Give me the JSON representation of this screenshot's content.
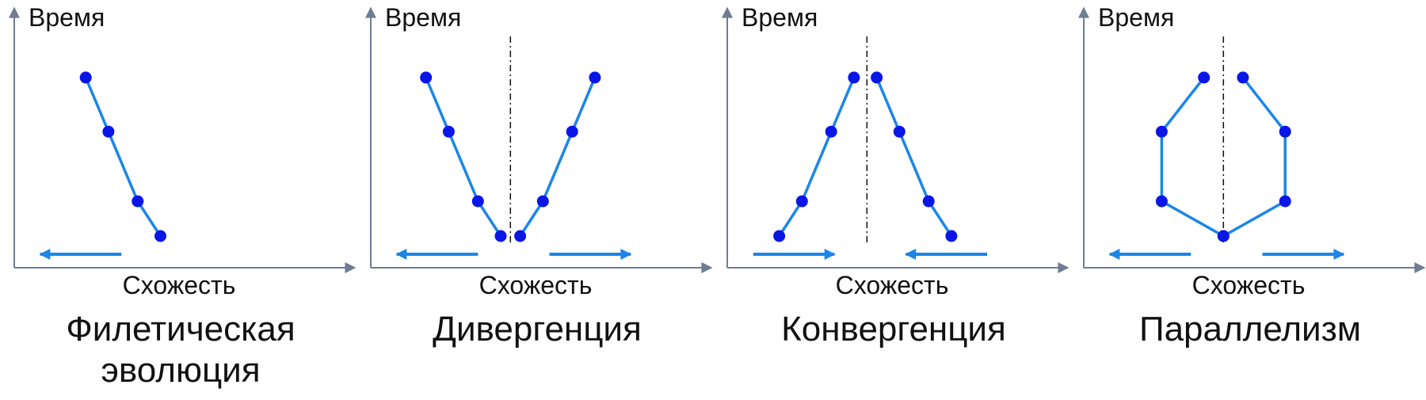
{
  "colors": {
    "axis": "#6f7d94",
    "line": "#1a86e8",
    "point": "#0a16e6",
    "arrow": "#1a86e8",
    "divider": "#111111",
    "text": "#111111"
  },
  "axis_labels": {
    "y": "Время",
    "x": "Схожесть"
  },
  "panels": [
    {
      "key": "phyletic",
      "title_lines": [
        "Филетическая",
        "эволюция"
      ],
      "y_label": "Время",
      "x_label": "Схожесть",
      "has_divider": false,
      "arrows": [
        "left"
      ],
      "lineages": [
        {
          "points": [
            [
              0.22,
              0.82
            ],
            [
              0.29,
              0.54
            ],
            [
              0.38,
              0.18
            ],
            [
              0.45,
              0.0
            ]
          ]
        }
      ]
    },
    {
      "key": "divergence",
      "title_lines": [
        "Дивергенция"
      ],
      "y_label": "Время",
      "x_label": "Схожесть",
      "has_divider": true,
      "arrows": [
        "left",
        "right"
      ],
      "lineages": [
        {
          "points": [
            [
              0.17,
              0.82
            ],
            [
              0.24,
              0.54
            ],
            [
              0.33,
              0.18
            ],
            [
              0.4,
              0.0
            ]
          ]
        },
        {
          "points": [
            [
              0.46,
              0.0
            ],
            [
              0.53,
              0.18
            ],
            [
              0.62,
              0.54
            ],
            [
              0.69,
              0.82
            ]
          ]
        }
      ]
    },
    {
      "key": "convergence",
      "title_lines": [
        "Конвергенция"
      ],
      "y_label": "Время",
      "x_label": "Схожесть",
      "has_divider": true,
      "arrows": [
        "right",
        "left"
      ],
      "lineages": [
        {
          "points": [
            [
              0.16,
              0.0
            ],
            [
              0.23,
              0.18
            ],
            [
              0.32,
              0.54
            ],
            [
              0.39,
              0.82
            ]
          ]
        },
        {
          "points": [
            [
              0.46,
              0.82
            ],
            [
              0.53,
              0.54
            ],
            [
              0.62,
              0.18
            ],
            [
              0.69,
              0.0
            ]
          ]
        }
      ]
    },
    {
      "key": "parallelism",
      "title_lines": [
        "Параллелизм"
      ],
      "y_label": "Время",
      "x_label": "Схожесть",
      "has_divider": true,
      "arrows": [
        "left",
        "right"
      ],
      "lineages": [
        {
          "points": [
            [
              0.43,
              0.0
            ],
            [
              0.24,
              0.18
            ],
            [
              0.24,
              0.54
            ],
            [
              0.37,
              0.82
            ]
          ]
        },
        {
          "points": [
            [
              0.43,
              0.0
            ],
            [
              0.62,
              0.18
            ],
            [
              0.62,
              0.54
            ],
            [
              0.49,
              0.82
            ]
          ]
        }
      ]
    }
  ]
}
